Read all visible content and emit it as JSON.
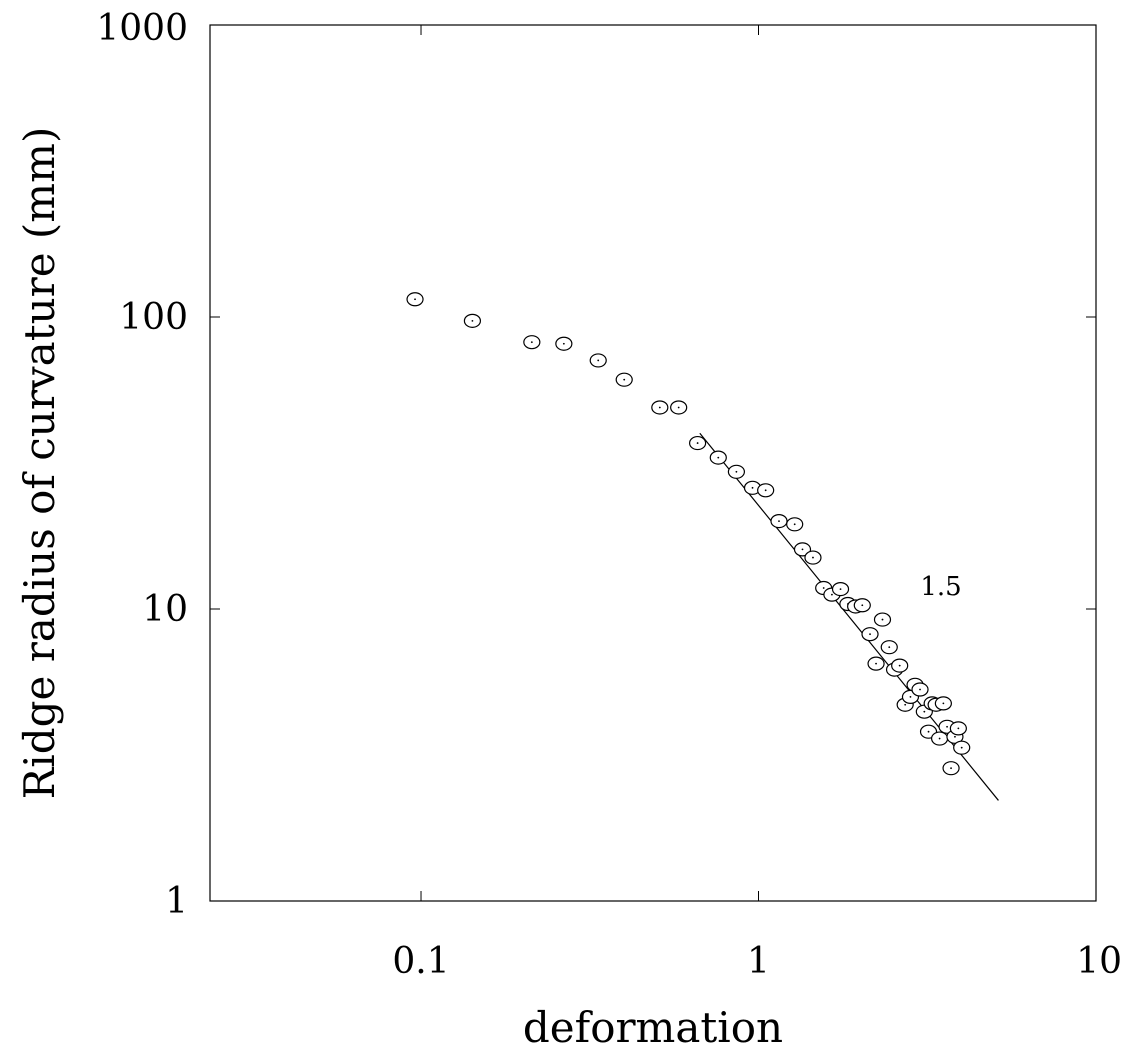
{
  "chart_data": {
    "type": "scatter",
    "title": "",
    "xlabel": "deformation",
    "ylabel": "Ridge radius of curvature (mm)",
    "x_scale": "log",
    "y_scale": "log",
    "xlim": [
      0.0237,
      10
    ],
    "ylim": [
      1,
      1000
    ],
    "x_ticks": [
      0.1,
      1,
      10
    ],
    "x_tick_labels": [
      "0.1",
      "1",
      "10"
    ],
    "y_ticks": [
      1,
      10,
      100,
      1000
    ],
    "y_tick_labels": [
      "1",
      "10",
      "100",
      "1000"
    ],
    "grid": false,
    "points": [
      [
        0.096,
        115
      ],
      [
        0.142,
        97
      ],
      [
        0.213,
        82
      ],
      [
        0.265,
        81
      ],
      [
        0.335,
        71
      ],
      [
        0.4,
        61
      ],
      [
        0.51,
        49
      ],
      [
        0.58,
        49
      ],
      [
        0.66,
        37
      ],
      [
        0.76,
        33
      ],
      [
        0.86,
        29.5
      ],
      [
        0.96,
        26
      ],
      [
        1.05,
        25.5
      ],
      [
        1.15,
        20
      ],
      [
        1.28,
        19.5
      ],
      [
        1.35,
        16
      ],
      [
        1.45,
        15
      ],
      [
        1.56,
        11.8
      ],
      [
        1.65,
        11.2
      ],
      [
        1.75,
        11.7
      ],
      [
        1.84,
        10.4
      ],
      [
        1.94,
        10.2
      ],
      [
        2.03,
        10.3
      ],
      [
        2.14,
        8.2
      ],
      [
        2.23,
        6.5
      ],
      [
        2.33,
        9.2
      ],
      [
        2.44,
        7.4
      ],
      [
        2.53,
        6.2
      ],
      [
        2.62,
        6.4
      ],
      [
        2.72,
        4.7
      ],
      [
        2.82,
        5.0
      ],
      [
        2.91,
        5.5
      ],
      [
        3.01,
        5.3
      ],
      [
        3.1,
        4.45
      ],
      [
        3.19,
        3.8
      ],
      [
        3.27,
        4.75
      ],
      [
        3.36,
        4.7
      ],
      [
        3.44,
        3.6
      ],
      [
        3.53,
        4.75
      ],
      [
        3.62,
        3.95
      ],
      [
        3.72,
        2.85
      ],
      [
        3.82,
        3.65
      ],
      [
        3.91,
        3.9
      ],
      [
        4.0,
        3.35
      ]
    ],
    "fit_line": {
      "x": [
        0.67,
        5.14
      ],
      "y": [
        40.0,
        2.21
      ],
      "label": "1.5",
      "label_x": 3.2,
      "label_y": 12.0
    }
  }
}
